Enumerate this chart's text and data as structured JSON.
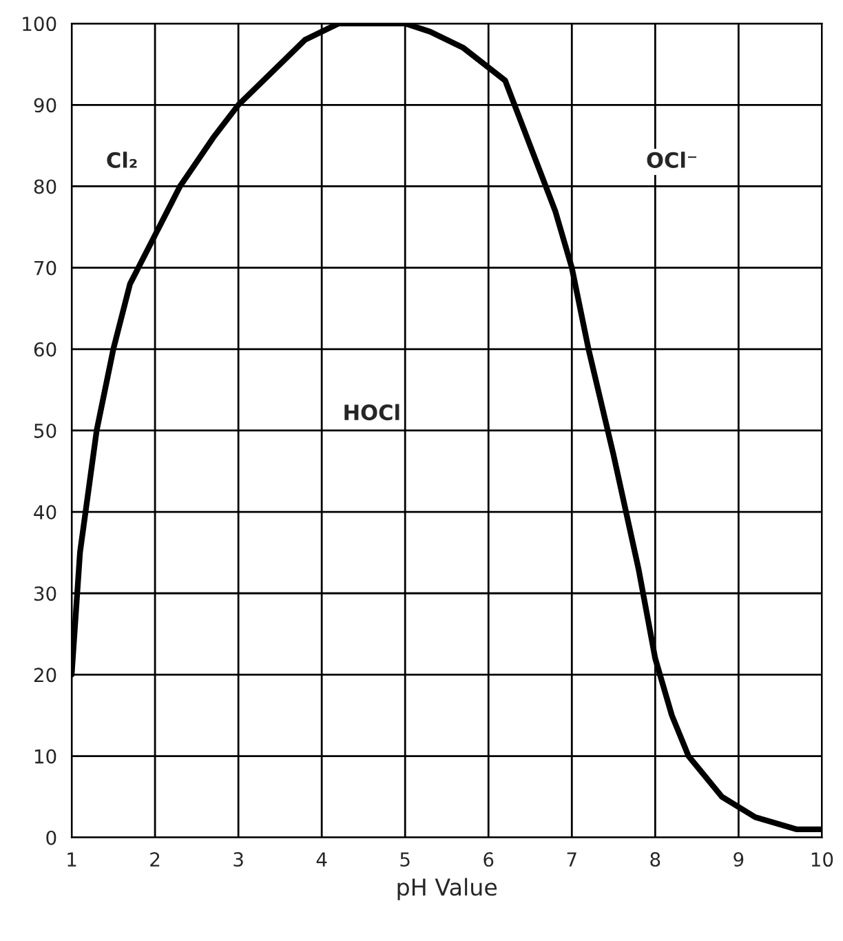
{
  "chart_data": {
    "type": "line",
    "xlabel": "pH Value",
    "x": [
      1,
      1.1,
      1.3,
      1.5,
      1.7,
      2,
      2.3,
      2.7,
      3,
      3.5,
      3.8,
      4.2,
      5.0,
      5.3,
      5.7,
      6.2,
      6.5,
      6.8,
      7,
      7.2,
      7.5,
      7.8,
      8,
      8.2,
      8.4,
      8.8,
      9.2,
      9.7,
      10
    ],
    "series": [
      {
        "color": "#000000",
        "values": [
          20,
          35,
          50,
          60,
          68,
          74,
          80,
          86,
          90,
          95,
          98,
          100,
          100,
          99,
          97,
          93,
          85,
          77,
          70,
          60,
          47,
          33,
          22,
          15,
          10,
          5,
          2.5,
          1,
          1
        ]
      }
    ],
    "annotations": [
      "Cl₂",
      "HOCl",
      "OCl⁻"
    ],
    "xlim": [
      1,
      10
    ],
    "ylim": [
      0,
      100
    ],
    "xticks": [
      1,
      2,
      3,
      4,
      5,
      6,
      7,
      8,
      9,
      10
    ],
    "yticks": [
      0,
      10,
      20,
      30,
      40,
      50,
      60,
      70,
      80,
      90,
      100
    ],
    "grid": true,
    "legend": false,
    "marker": "none",
    "line_style": "solid"
  }
}
